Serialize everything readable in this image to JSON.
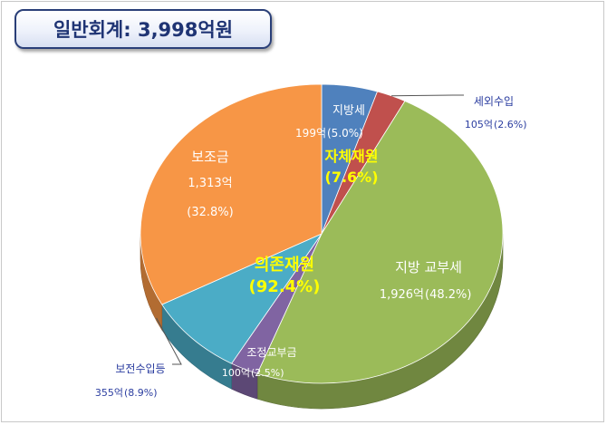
{
  "title": "일반회계: 3,998억원",
  "chart_data": {
    "type": "pie",
    "total_label": "일반회계: 3,998억원",
    "slices": [
      {
        "label": "지방세",
        "amount": "199억",
        "value": 199,
        "percent": "(5.0%)",
        "color": "#4f81bd"
      },
      {
        "label": "세외수입",
        "amount": "105억",
        "value": 105,
        "percent": "(2.6%)",
        "color": "#c0504d"
      },
      {
        "label": "지방 교부세",
        "amount": "1,926억",
        "value": 1926,
        "percent": "(48.2%)",
        "color": "#9bbb59"
      },
      {
        "label": "조정교부금",
        "amount": "100억",
        "value": 100,
        "percent": "(2.5%)",
        "color": "#8064a2"
      },
      {
        "label": "보전수입등",
        "amount": "355억",
        "value": 355,
        "percent": "(8.9%)",
        "color": "#4bacc6"
      },
      {
        "label": "보조금",
        "amount": "1,313억",
        "value": 1313,
        "percent": "(32.8%)",
        "color": "#f79646"
      }
    ],
    "groups": [
      {
        "label": "자체재원",
        "percent": "(7.6%)"
      },
      {
        "label": "의존재원",
        "percent": "(92.4%)"
      }
    ]
  }
}
